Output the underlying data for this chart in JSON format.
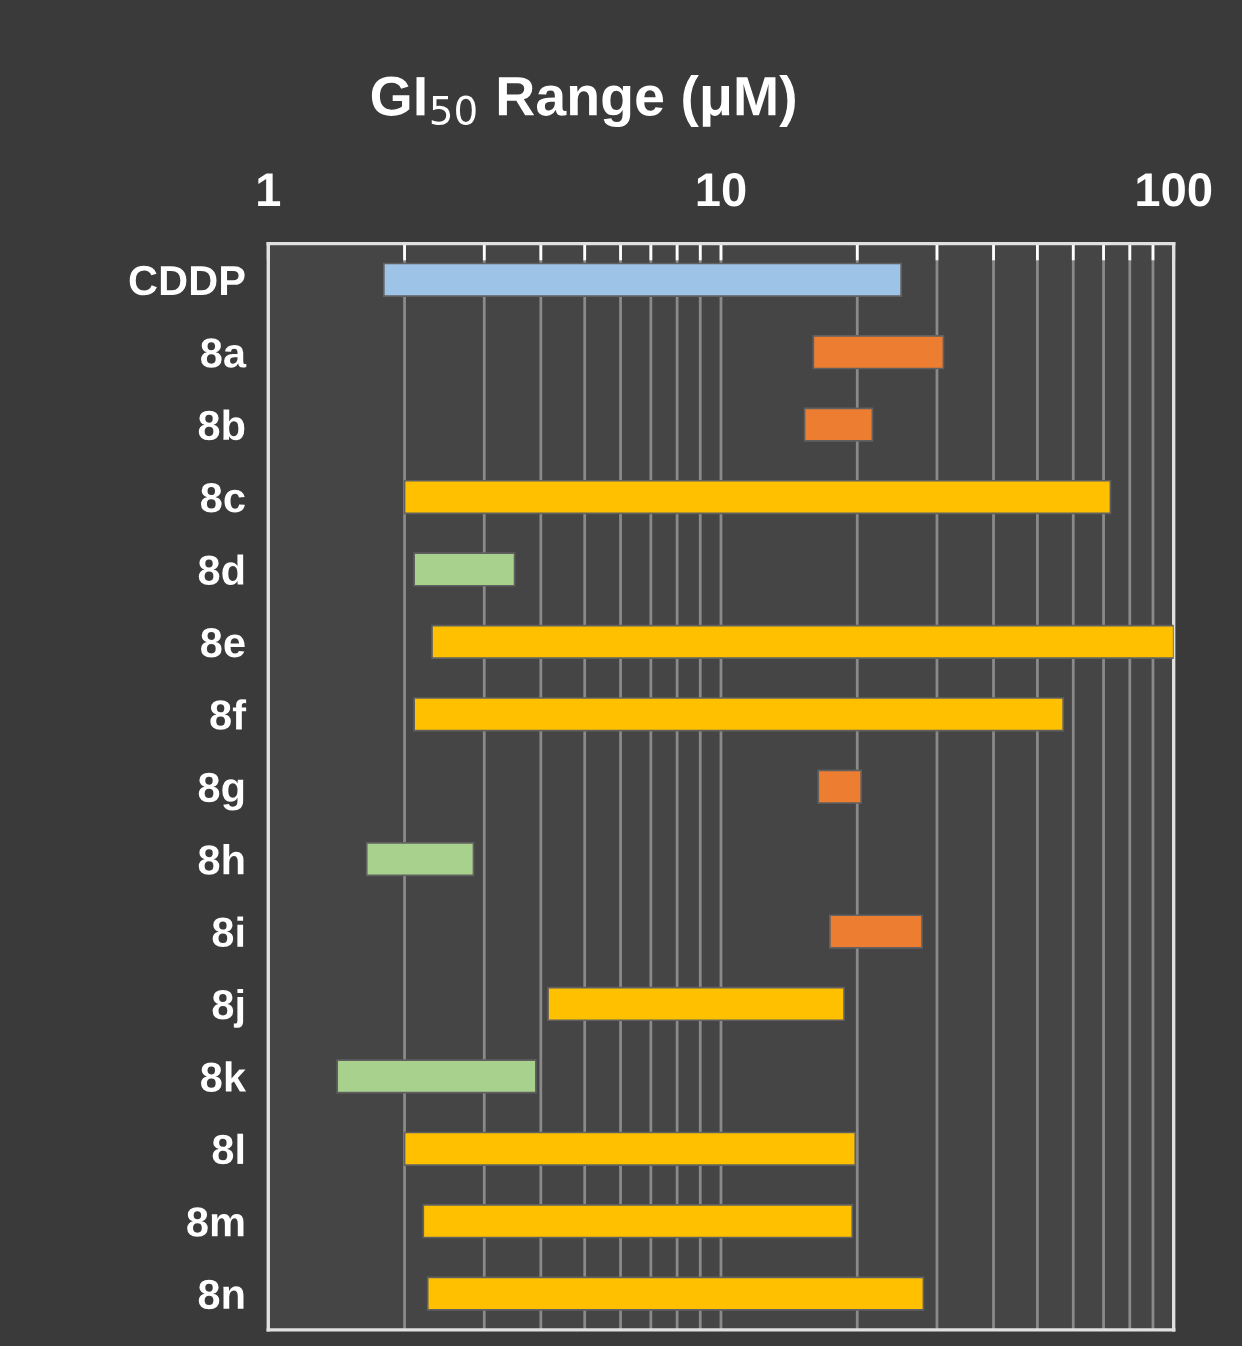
{
  "chart_data": {
    "type": "bar",
    "orientation": "horizontal",
    "title": "GI$_{50}$ Range (μM)",
    "categories": [
      "CDDP",
      "8a",
      "8b",
      "8c",
      "8d",
      "8e",
      "8f",
      "8g",
      "8h",
      "8i",
      "8j",
      "8k",
      "8l",
      "8m",
      "8n"
    ],
    "base": [
      1.8,
      16,
      15.3,
      2.0,
      2.1,
      2.3,
      2.1,
      16.4,
      1.65,
      17.4,
      4.15,
      1.42,
      2.0,
      2.2,
      2.25
    ],
    "values": [
      23.2,
      15,
      6.3,
      70.5,
      1.4,
      97.7,
      54.9,
      4.0,
      1.19,
      10.4,
      14.55,
      2.48,
      17.8,
      17.3,
      25.75
    ],
    "colors": [
      "#9dc3e6",
      "#ed7d31",
      "#ed7d31",
      "#ffc000",
      "#a9d18e",
      "#ffc000",
      "#ffc000",
      "#ed7d31",
      "#a9d18e",
      "#ed7d31",
      "#ffc000",
      "#a9d18e",
      "#ffc000",
      "#ffc000",
      "#ffc000"
    ],
    "log": "x",
    "xlim": [
      1,
      100
    ],
    "xticks": [
      1,
      {
        "value": 2,
        "label": null
      },
      {
        "value": 3,
        "label": null
      },
      {
        "value": 4,
        "label": null
      },
      {
        "value": 5,
        "label": null
      },
      {
        "value": 6,
        "label": null
      },
      {
        "value": 7,
        "label": null
      },
      {
        "value": 8,
        "label": null
      },
      {
        "value": 9,
        "label": null
      },
      10,
      {
        "value": 20,
        "label": null
      },
      {
        "value": 30,
        "label": null
      },
      {
        "value": 40,
        "label": null
      },
      {
        "value": 50,
        "label": null
      },
      {
        "value": 60,
        "label": null
      },
      {
        "value": 70,
        "label": null
      },
      {
        "value": 80,
        "label": null
      },
      {
        "value": 90,
        "label": null
      },
      100
    ],
    "grid": "x"
  }
}
